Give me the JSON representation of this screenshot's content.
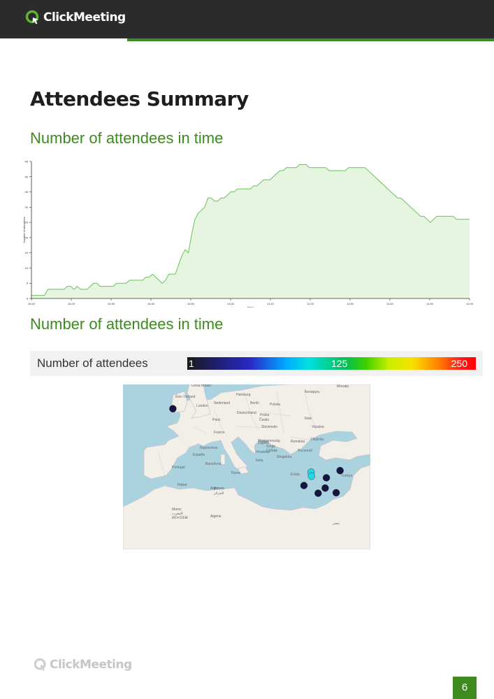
{
  "header": {
    "brand": "ClickMeeting"
  },
  "page": {
    "title": "Attendees Summary",
    "page_number": "6"
  },
  "sections": {
    "line_chart_title": "Number of attendees in time",
    "map_title": "Number of attendees in time"
  },
  "colors": {
    "brand_green": "#3d8b1f",
    "line": "#6ac25a",
    "fill": "#e5f5e0"
  },
  "chart_data": {
    "type": "area",
    "xlabel": "Hour",
    "ylabel": "Number of attendees",
    "ylim": [
      0,
      45
    ],
    "yticks": [
      0,
      5,
      10,
      15,
      20,
      25,
      30,
      35,
      40,
      45
    ],
    "xticks": [
      "10:10",
      "10:20",
      "10:30",
      "10:40",
      "10:50",
      "11:00",
      "11:10",
      "11:20",
      "11:30",
      "11:40",
      "11:50",
      "12:00"
    ],
    "grid": false,
    "series": [
      {
        "values": [
          1,
          1,
          1,
          1,
          1,
          3,
          3,
          3,
          3,
          3,
          3,
          4,
          4,
          3,
          4,
          3,
          3,
          3,
          4,
          5,
          5,
          4,
          4,
          4,
          4,
          4,
          5,
          5,
          5,
          5,
          6,
          6,
          6,
          6,
          6,
          7,
          7,
          8,
          7,
          6,
          5,
          6,
          8,
          8,
          8,
          11,
          14,
          16,
          15,
          21,
          26,
          28,
          29,
          30,
          33,
          33,
          32,
          32,
          33,
          33,
          34,
          35,
          35,
          36,
          36,
          36,
          36,
          36,
          37,
          37,
          38,
          39,
          39,
          39,
          40,
          41,
          42,
          42,
          43,
          43,
          43,
          43,
          44,
          44,
          44,
          43,
          43,
          43,
          43,
          43,
          43,
          42,
          42,
          42,
          42,
          42,
          42,
          43,
          43,
          43,
          43,
          43,
          43,
          42,
          41,
          40,
          39,
          38,
          37,
          36,
          35,
          34,
          33,
          33,
          32,
          31,
          30,
          29,
          28,
          27,
          27,
          26,
          25,
          26,
          27,
          27,
          27,
          27,
          27,
          27,
          26,
          26,
          26,
          26,
          26
        ]
      }
    ]
  },
  "legend": {
    "label": "Number of attendees",
    "min": "1",
    "mid": "125",
    "max": "250"
  },
  "map": {
    "labels": [
      "Great Britain",
      "Éire / Ireland",
      "London",
      "Nederland",
      "Hamburg",
      "Berlin",
      "Polska",
      "Deutschland",
      "Praha",
      "Paris",
      "Česko",
      "Slovensko",
      "Київ",
      "Україна",
      "France",
      "Magyarország",
      "Chişinău",
      "Zagreb",
      "România",
      "Hrvatska",
      "București",
      "Srbija",
      "Србија",
      "Барcелона",
      "España",
      "Portugal",
      "Barcelona",
      "Italia",
      "Shqipëria",
      "Ελλάς",
      "Türkiye",
      "Roma",
      "Алжир",
      "الجزائر",
      "Algérie",
      "Maroc",
      "المغرب",
      "ⵍⵎⵖⵔⵉⴱ",
      "Беларусь",
      "Москва",
      "Rabat",
      "Alger",
      "مصر"
    ],
    "attendee_points": [
      {
        "lat": 53.3,
        "lon": -6.3,
        "count": 10
      },
      {
        "lat": 41.0,
        "lon": 28.9,
        "count": 120
      },
      {
        "lat": 40.2,
        "lon": 29.0,
        "count": 110
      },
      {
        "lat": 39.9,
        "lon": 32.8,
        "count": 5
      },
      {
        "lat": 38.4,
        "lon": 27.1,
        "count": 8
      },
      {
        "lat": 37.0,
        "lon": 35.3,
        "count": 6
      },
      {
        "lat": 41.3,
        "lon": 36.3,
        "count": 4
      },
      {
        "lat": 37.9,
        "lon": 32.5,
        "count": 5
      },
      {
        "lat": 36.9,
        "lon": 30.7,
        "count": 4
      }
    ]
  },
  "footer": {
    "brand": "ClickMeeting"
  }
}
